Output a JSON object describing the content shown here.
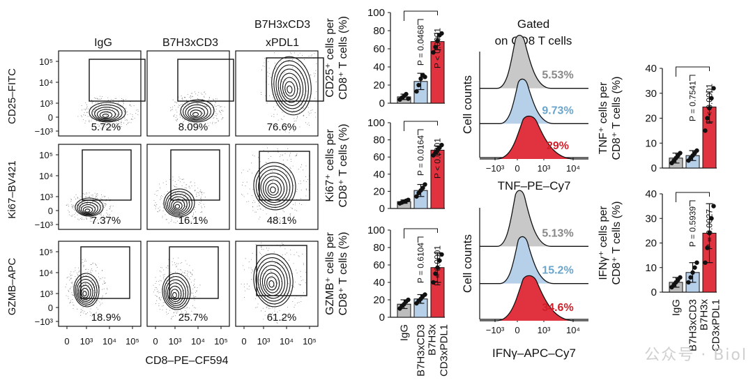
{
  "flow": {
    "columns": [
      "IgG",
      "B7H3xCD3",
      "B7H3xCD3\nxPDL1"
    ],
    "rows": [
      "CD25–FITC",
      "Ki67–BV421",
      "GZMB–APC"
    ],
    "percentages": [
      [
        "5.72%",
        "8.09%",
        "76.6%"
      ],
      [
        "7.37%",
        "16.1%",
        "48.1%"
      ],
      [
        "18.9%",
        "25.7%",
        "61.2%"
      ]
    ],
    "xlabel": "CD8–PE–CF594",
    "xticks": [
      "0",
      "10³",
      "10⁴",
      "10⁵"
    ],
    "yticks": [
      "10⁵",
      "10⁴",
      "10³",
      "0",
      "−10³"
    ]
  },
  "histograms": {
    "title_line1": "Gated",
    "title_line2": "on CD8 T cells",
    "ylabel": "Cell counts",
    "xticks": [
      "−10³",
      "0",
      "10³",
      "10⁴"
    ],
    "panels": [
      {
        "xlabel": "TNF–PE–Cy7",
        "pcts": [
          "5.53%",
          "9.73%",
          "29%"
        ]
      },
      {
        "xlabel": "IFNγ–APC–Cy7",
        "pcts": [
          "5.13%",
          "15.2%",
          "34.6%"
        ]
      }
    ],
    "colors": [
      "#c8c8c8",
      "#b6d0ea",
      "#e0333f"
    ],
    "pct_colors": [
      "#888888",
      "#6aa6cc",
      "#d01f2a"
    ]
  },
  "chart_data": [
    {
      "type": "bar",
      "title": "",
      "ylabel_line1": "CD25⁺ cells per",
      "ylabel_line2": "CD8⁺ T cells (%)",
      "categories": [
        "IgG",
        "B7H3xCD3",
        "B7H3xCD3xPDL1"
      ],
      "values": [
        7,
        24,
        68
      ],
      "errors": [
        3,
        9,
        9
      ],
      "points": [
        [
          4,
          6,
          8,
          10,
          5
        ],
        [
          13,
          20,
          27,
          31,
          29
        ],
        [
          56,
          62,
          69,
          75,
          77
        ]
      ],
      "ylim": [
        0,
        100
      ],
      "yticks": [
        0,
        20,
        40,
        60,
        80,
        100
      ],
      "pvalues": [
        "P = 0.0468",
        "P < 0.0001"
      ]
    },
    {
      "type": "bar",
      "title": "",
      "ylabel_line1": "Ki67⁺ cells per",
      "ylabel_line2": "CD8⁺ T cells (%)",
      "categories": [
        "IgG",
        "B7H3xCD3",
        "B7H3xCD3xPDL1"
      ],
      "values": [
        8,
        21,
        68
      ],
      "errors": [
        2,
        7,
        5
      ],
      "points": [
        [
          6,
          7,
          8,
          9,
          10
        ],
        [
          14,
          18,
          21,
          24,
          28
        ],
        [
          62,
          65,
          68,
          71,
          74
        ]
      ],
      "ylim": [
        0,
        100
      ],
      "yticks": [
        0,
        20,
        40,
        60,
        80,
        100
      ],
      "pvalues": [
        "P = 0.0164",
        "P < 0.0001"
      ]
    },
    {
      "type": "bar",
      "title": "",
      "ylabel_line1": "GZMB⁺ cells per",
      "ylabel_line2": "CD8⁺ T cells (%)",
      "categories": [
        "IgG",
        "B7H3xCD3",
        "B7H3xCD3xPDL1"
      ],
      "values": [
        15,
        21,
        57
      ],
      "errors": [
        5,
        5,
        17
      ],
      "points": [
        [
          10,
          13,
          15,
          18,
          20
        ],
        [
          16,
          19,
          21,
          24,
          26
        ],
        [
          40,
          50,
          57,
          65,
          72
        ]
      ],
      "ylim": [
        0,
        100
      ],
      "yticks": [
        0,
        20,
        40,
        60,
        80,
        100
      ],
      "pvalues": [
        "P = 0.6104",
        "P = 0.0001"
      ]
    },
    {
      "type": "bar",
      "title": "",
      "ylabel_line1": "TNF⁺ cells per",
      "ylabel_line2": "CD8⁺ T cells (%)",
      "categories": [
        "IgG",
        "B7H3xCD3",
        "B7H3xCD3xPDL1"
      ],
      "values": [
        4,
        5,
        24.5
      ],
      "errors": [
        2,
        2,
        6
      ],
      "points": [
        [
          2,
          3,
          4,
          5,
          6
        ],
        [
          3,
          4,
          5,
          6,
          7
        ],
        [
          15,
          20,
          24,
          28,
          32
        ]
      ],
      "ylim": [
        0,
        40
      ],
      "yticks": [
        0,
        10,
        20,
        30,
        40
      ],
      "pvalues": [
        "P = 0.7541",
        "P < 0.0001"
      ]
    },
    {
      "type": "bar",
      "title": "",
      "ylabel_line1": "IFNγ⁺ cells per",
      "ylabel_line2": "CD8⁺ T cells (%)",
      "categories": [
        "IgG",
        "B7H3xCD3",
        "B7H3xCD3xPDL1"
      ],
      "values": [
        4,
        8,
        24
      ],
      "errors": [
        2,
        4,
        12
      ],
      "points": [
        [
          2,
          3,
          4,
          5,
          6
        ],
        [
          4,
          6,
          8,
          10,
          12
        ],
        [
          12,
          18,
          24,
          30,
          35
        ]
      ],
      "ylim": [
        0,
        40
      ],
      "yticks": [
        0,
        10,
        20,
        30,
        40
      ],
      "pvalues": [
        "P = 0.5939",
        "P = 0.0027"
      ]
    }
  ],
  "bar_xlabels": [
    "IgG",
    "B7H3xCD3",
    "B7H3x\nCD3xPDL1"
  ],
  "bar_colors": [
    "#bdbdbd",
    "#b6d0ea",
    "#e0333f"
  ],
  "watermark": "公众号 · Biol"
}
